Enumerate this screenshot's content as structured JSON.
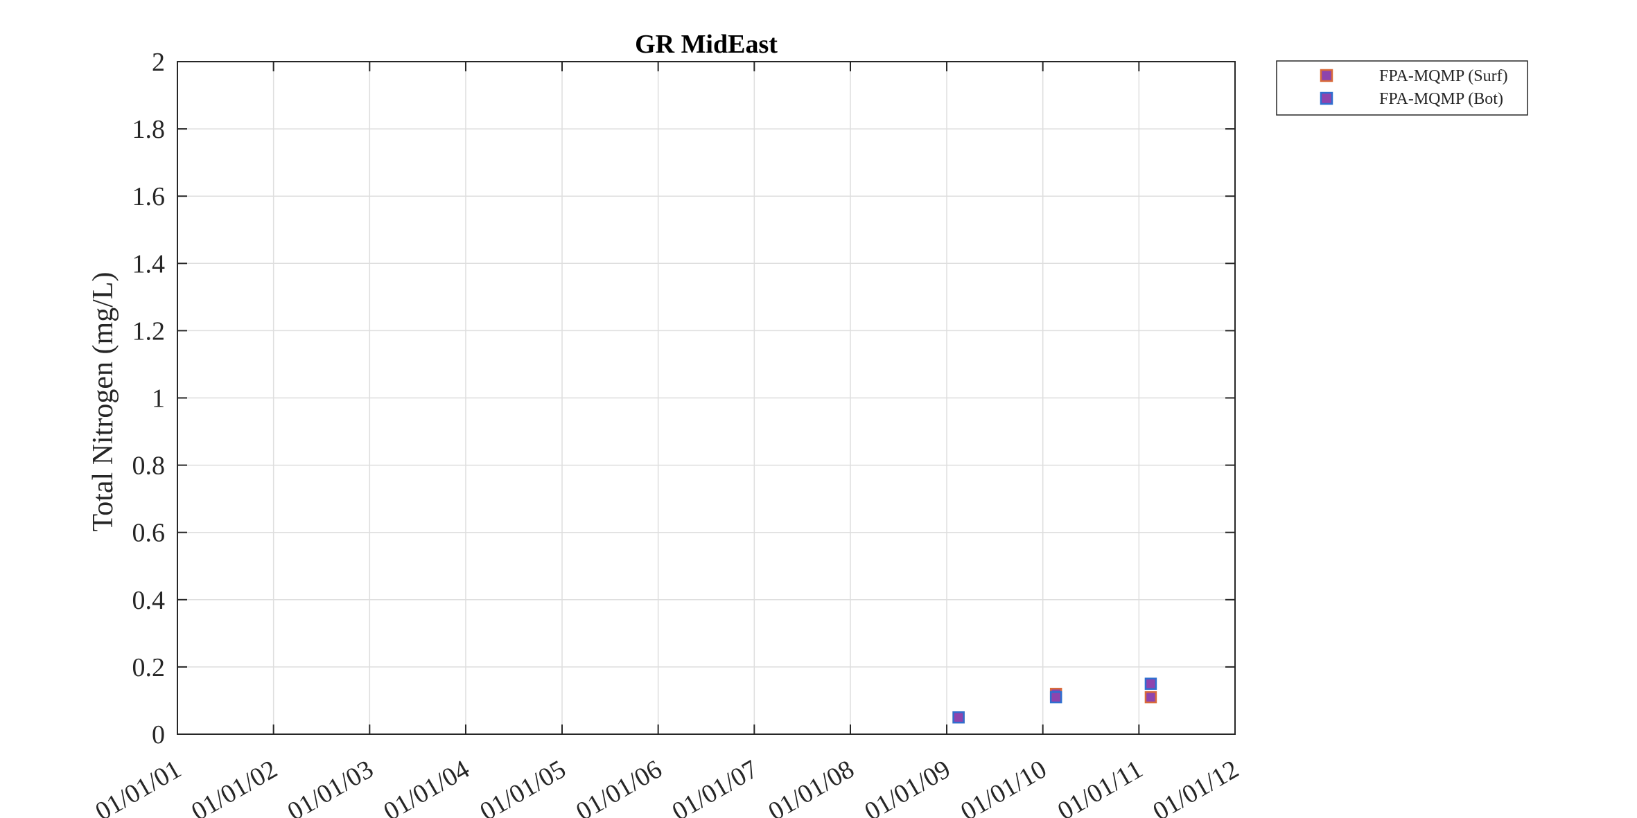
{
  "chart_data": {
    "type": "scatter",
    "title": "GR MidEast",
    "xlabel": "",
    "ylabel": "Total Nitrogen (mg/L)",
    "x_axis": {
      "kind": "date",
      "ticks": [
        "01/01/01",
        "01/01/02",
        "01/01/03",
        "01/01/04",
        "01/01/05",
        "01/01/06",
        "01/01/07",
        "01/01/08",
        "01/01/09",
        "01/01/10",
        "01/01/11",
        "01/01/12"
      ],
      "range": [
        "01/01/01",
        "01/01/12"
      ]
    },
    "ylim": [
      0,
      2
    ],
    "y_ticks": [
      "0",
      "0.2",
      "0.4",
      "0.6",
      "0.8",
      "1",
      "1.2",
      "1.4",
      "1.6",
      "1.8",
      "2"
    ],
    "grid": true,
    "legend_position": "outside-top-right",
    "series": [
      {
        "name": "FPA-MQMP (Surf)",
        "marker": "square",
        "face_color": "#8e44ad",
        "edge_color": "#d96a3a",
        "points": [
          {
            "x": "2009-02-15",
            "y": 0.05
          },
          {
            "x": "2010-02-20",
            "y": 0.12
          },
          {
            "x": "2011-02-15",
            "y": 0.11
          }
        ]
      },
      {
        "name": "FPA-MQMP (Bot)",
        "marker": "square",
        "face_color": "#8e44ad",
        "edge_color": "#2f6fd0",
        "points": [
          {
            "x": "2009-02-15",
            "y": 0.05
          },
          {
            "x": "2010-02-20",
            "y": 0.11
          },
          {
            "x": "2011-02-15",
            "y": 0.15
          }
        ]
      }
    ]
  }
}
